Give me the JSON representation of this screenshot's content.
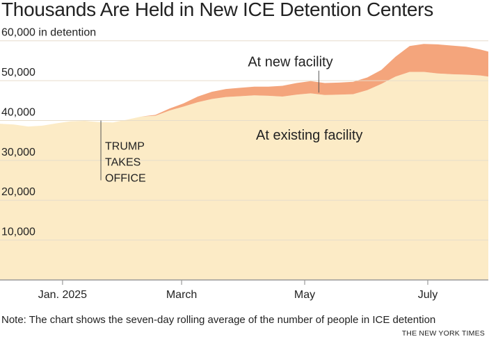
{
  "colors": {
    "existing_fill": "#fcebc6",
    "new_fill": "#f4a57c",
    "grid": "#e6dccb",
    "axis": "#9a9a9a",
    "text": "#222222",
    "marker": "#555555"
  },
  "chart_data": {
    "type": "area",
    "stacked": true,
    "title": "Thousands Are Held in New ICE Detention Centers",
    "ylabel": "in detention",
    "ylim": [
      0,
      65000
    ],
    "y_ticks": [
      {
        "value": 60000,
        "label": "60,000 in detention"
      },
      {
        "value": 50000,
        "label": "50,000"
      },
      {
        "value": 40000,
        "label": "40,000"
      },
      {
        "value": 30000,
        "label": "30,000"
      },
      {
        "value": 20000,
        "label": "20,000"
      },
      {
        "value": 10000,
        "label": "10,000"
      }
    ],
    "x_range": [
      "2024-12-01",
      "2025-07-31"
    ],
    "x_ticks": [
      {
        "date": "2025-01-01",
        "label": "Jan. 2025"
      },
      {
        "date": "2025-03-01",
        "label": "March"
      },
      {
        "date": "2025-05-01",
        "label": "May"
      },
      {
        "date": "2025-07-01",
        "label": "July"
      }
    ],
    "series": [
      {
        "name": "At existing facility",
        "dates": [
          "2024-12-01",
          "2024-12-08",
          "2024-12-15",
          "2024-12-22",
          "2024-12-29",
          "2025-01-05",
          "2025-01-12",
          "2025-01-19",
          "2025-01-26",
          "2025-02-02",
          "2025-02-09",
          "2025-02-16",
          "2025-02-23",
          "2025-03-02",
          "2025-03-09",
          "2025-03-16",
          "2025-03-23",
          "2025-03-30",
          "2025-04-06",
          "2025-04-13",
          "2025-04-20",
          "2025-04-27",
          "2025-05-04",
          "2025-05-11",
          "2025-05-18",
          "2025-05-25",
          "2025-06-01",
          "2025-06-08",
          "2025-06-15",
          "2025-06-22",
          "2025-06-29",
          "2025-07-06",
          "2025-07-13",
          "2025-07-20",
          "2025-07-27",
          "2025-07-31"
        ],
        "values": [
          39200,
          39000,
          38500,
          38700,
          39300,
          39800,
          39900,
          39600,
          39500,
          40200,
          41000,
          41200,
          42500,
          43500,
          44600,
          45400,
          45900,
          46100,
          46300,
          46200,
          46000,
          46500,
          46800,
          46400,
          46500,
          46600,
          47600,
          49200,
          51000,
          52200,
          52200,
          51800,
          51600,
          51500,
          51300,
          51000
        ]
      },
      {
        "name": "At new facility",
        "dates": [
          "2024-12-01",
          "2024-12-08",
          "2024-12-15",
          "2024-12-22",
          "2024-12-29",
          "2025-01-05",
          "2025-01-12",
          "2025-01-19",
          "2025-01-26",
          "2025-02-02",
          "2025-02-09",
          "2025-02-16",
          "2025-02-23",
          "2025-03-02",
          "2025-03-09",
          "2025-03-16",
          "2025-03-23",
          "2025-03-30",
          "2025-04-06",
          "2025-04-13",
          "2025-04-20",
          "2025-04-27",
          "2025-05-04",
          "2025-05-11",
          "2025-05-18",
          "2025-05-25",
          "2025-06-01",
          "2025-06-08",
          "2025-06-15",
          "2025-06-22",
          "2025-06-29",
          "2025-07-06",
          "2025-07-13",
          "2025-07-20",
          "2025-07-27",
          "2025-07-31"
        ],
        "values": [
          0,
          0,
          0,
          0,
          0,
          0,
          0,
          0,
          0,
          0,
          0,
          200,
          500,
          800,
          1400,
          1800,
          2000,
          2100,
          2200,
          2300,
          2700,
          2900,
          3100,
          3000,
          3000,
          3100,
          3200,
          3500,
          5000,
          6500,
          7000,
          7300,
          7200,
          7000,
          6500,
          6300
        ]
      }
    ],
    "annotations": {
      "trump": {
        "date": "2025-01-20",
        "top_value": 40000,
        "bottom_value": 25000,
        "lines": [
          "TRUMP",
          "TAKES",
          "OFFICE"
        ]
      },
      "new_facility": {
        "text": "At new facility",
        "date": "2025-05-08",
        "top_value": 52500,
        "bottom_value": 47000
      },
      "existing_facility": {
        "text": "At existing facility"
      }
    }
  },
  "note": "Note: The chart shows the seven-day rolling average of the number of people in ICE detention",
  "credit": "THE NEW YORK TIMES"
}
